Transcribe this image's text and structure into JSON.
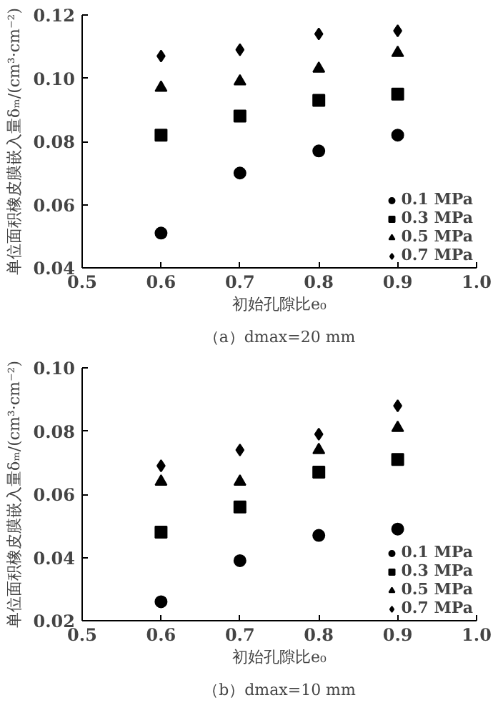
{
  "chart_data": [
    {
      "type": "scatter",
      "xlabel": "初始孔隙比e₀",
      "ylabel": "单位面积橡皮膜嵌入量δₘ/(cm³·cm⁻²)",
      "annotations": [
        "（a）dmax=20 mm"
      ],
      "x": [
        0.6,
        0.7,
        0.8,
        0.9
      ],
      "xlim": [
        0.5,
        1.0
      ],
      "xticks": [
        0.5,
        0.6,
        0.7,
        0.8,
        0.9,
        {
          "value": 1.0,
          "label": "1.0"
        }
      ],
      "ylim": [
        0.04,
        0.12
      ],
      "yticks": [
        0.04,
        0.06,
        0.08,
        {
          "value": 0.1,
          "label": "0.10"
        },
        0.12
      ],
      "legend": "bottom right",
      "grid": false,
      "series": [
        {
          "name": "0.1 MPa",
          "color": "#000000",
          "marker": "circle",
          "values": [
            0.051,
            0.07,
            0.077,
            0.082
          ]
        },
        {
          "name": "0.3 MPa",
          "color": "#000000",
          "marker": "square",
          "values": [
            0.082,
            0.088,
            0.093,
            0.095
          ]
        },
        {
          "name": "0.5 MPa",
          "color": "#000000",
          "marker": "triangle",
          "values": [
            0.097,
            0.099,
            0.103,
            0.108
          ]
        },
        {
          "name": "0.7 MPa",
          "color": "#000000",
          "marker": "diamond",
          "values": [
            0.107,
            0.109,
            0.114,
            0.115
          ]
        }
      ]
    },
    {
      "type": "scatter",
      "xlabel": "初始孔隙比e₀",
      "ylabel": "单位面积橡皮膜嵌入量δₘ/(cm³·cm⁻²)",
      "annotations": [
        "（b）dmax=10 mm"
      ],
      "x": [
        0.6,
        0.7,
        0.8,
        0.9
      ],
      "xlim": [
        0.5,
        1.0
      ],
      "xticks": [
        0.5,
        0.6,
        0.7,
        0.8,
        0.9,
        {
          "value": 1.0,
          "label": "1.0"
        }
      ],
      "ylim": [
        0.02,
        0.1
      ],
      "yticks": [
        0.02,
        0.04,
        0.06,
        0.08,
        {
          "value": 0.1,
          "label": "0.10"
        }
      ],
      "legend": "bottom right",
      "grid": false,
      "series": [
        {
          "name": "0.1 MPa",
          "color": "#000000",
          "marker": "circle",
          "values": [
            0.026,
            0.039,
            0.047,
            0.049
          ]
        },
        {
          "name": "0.3 MPa",
          "color": "#000000",
          "marker": "square",
          "values": [
            0.048,
            0.056,
            0.067,
            0.071
          ]
        },
        {
          "name": "0.5 MPa",
          "color": "#000000",
          "marker": "triangle",
          "values": [
            0.064,
            0.064,
            0.074,
            0.081
          ]
        },
        {
          "name": "0.7 MPa",
          "color": "#000000",
          "marker": "diamond",
          "values": [
            0.069,
            0.074,
            0.079,
            0.088
          ]
        }
      ]
    }
  ]
}
